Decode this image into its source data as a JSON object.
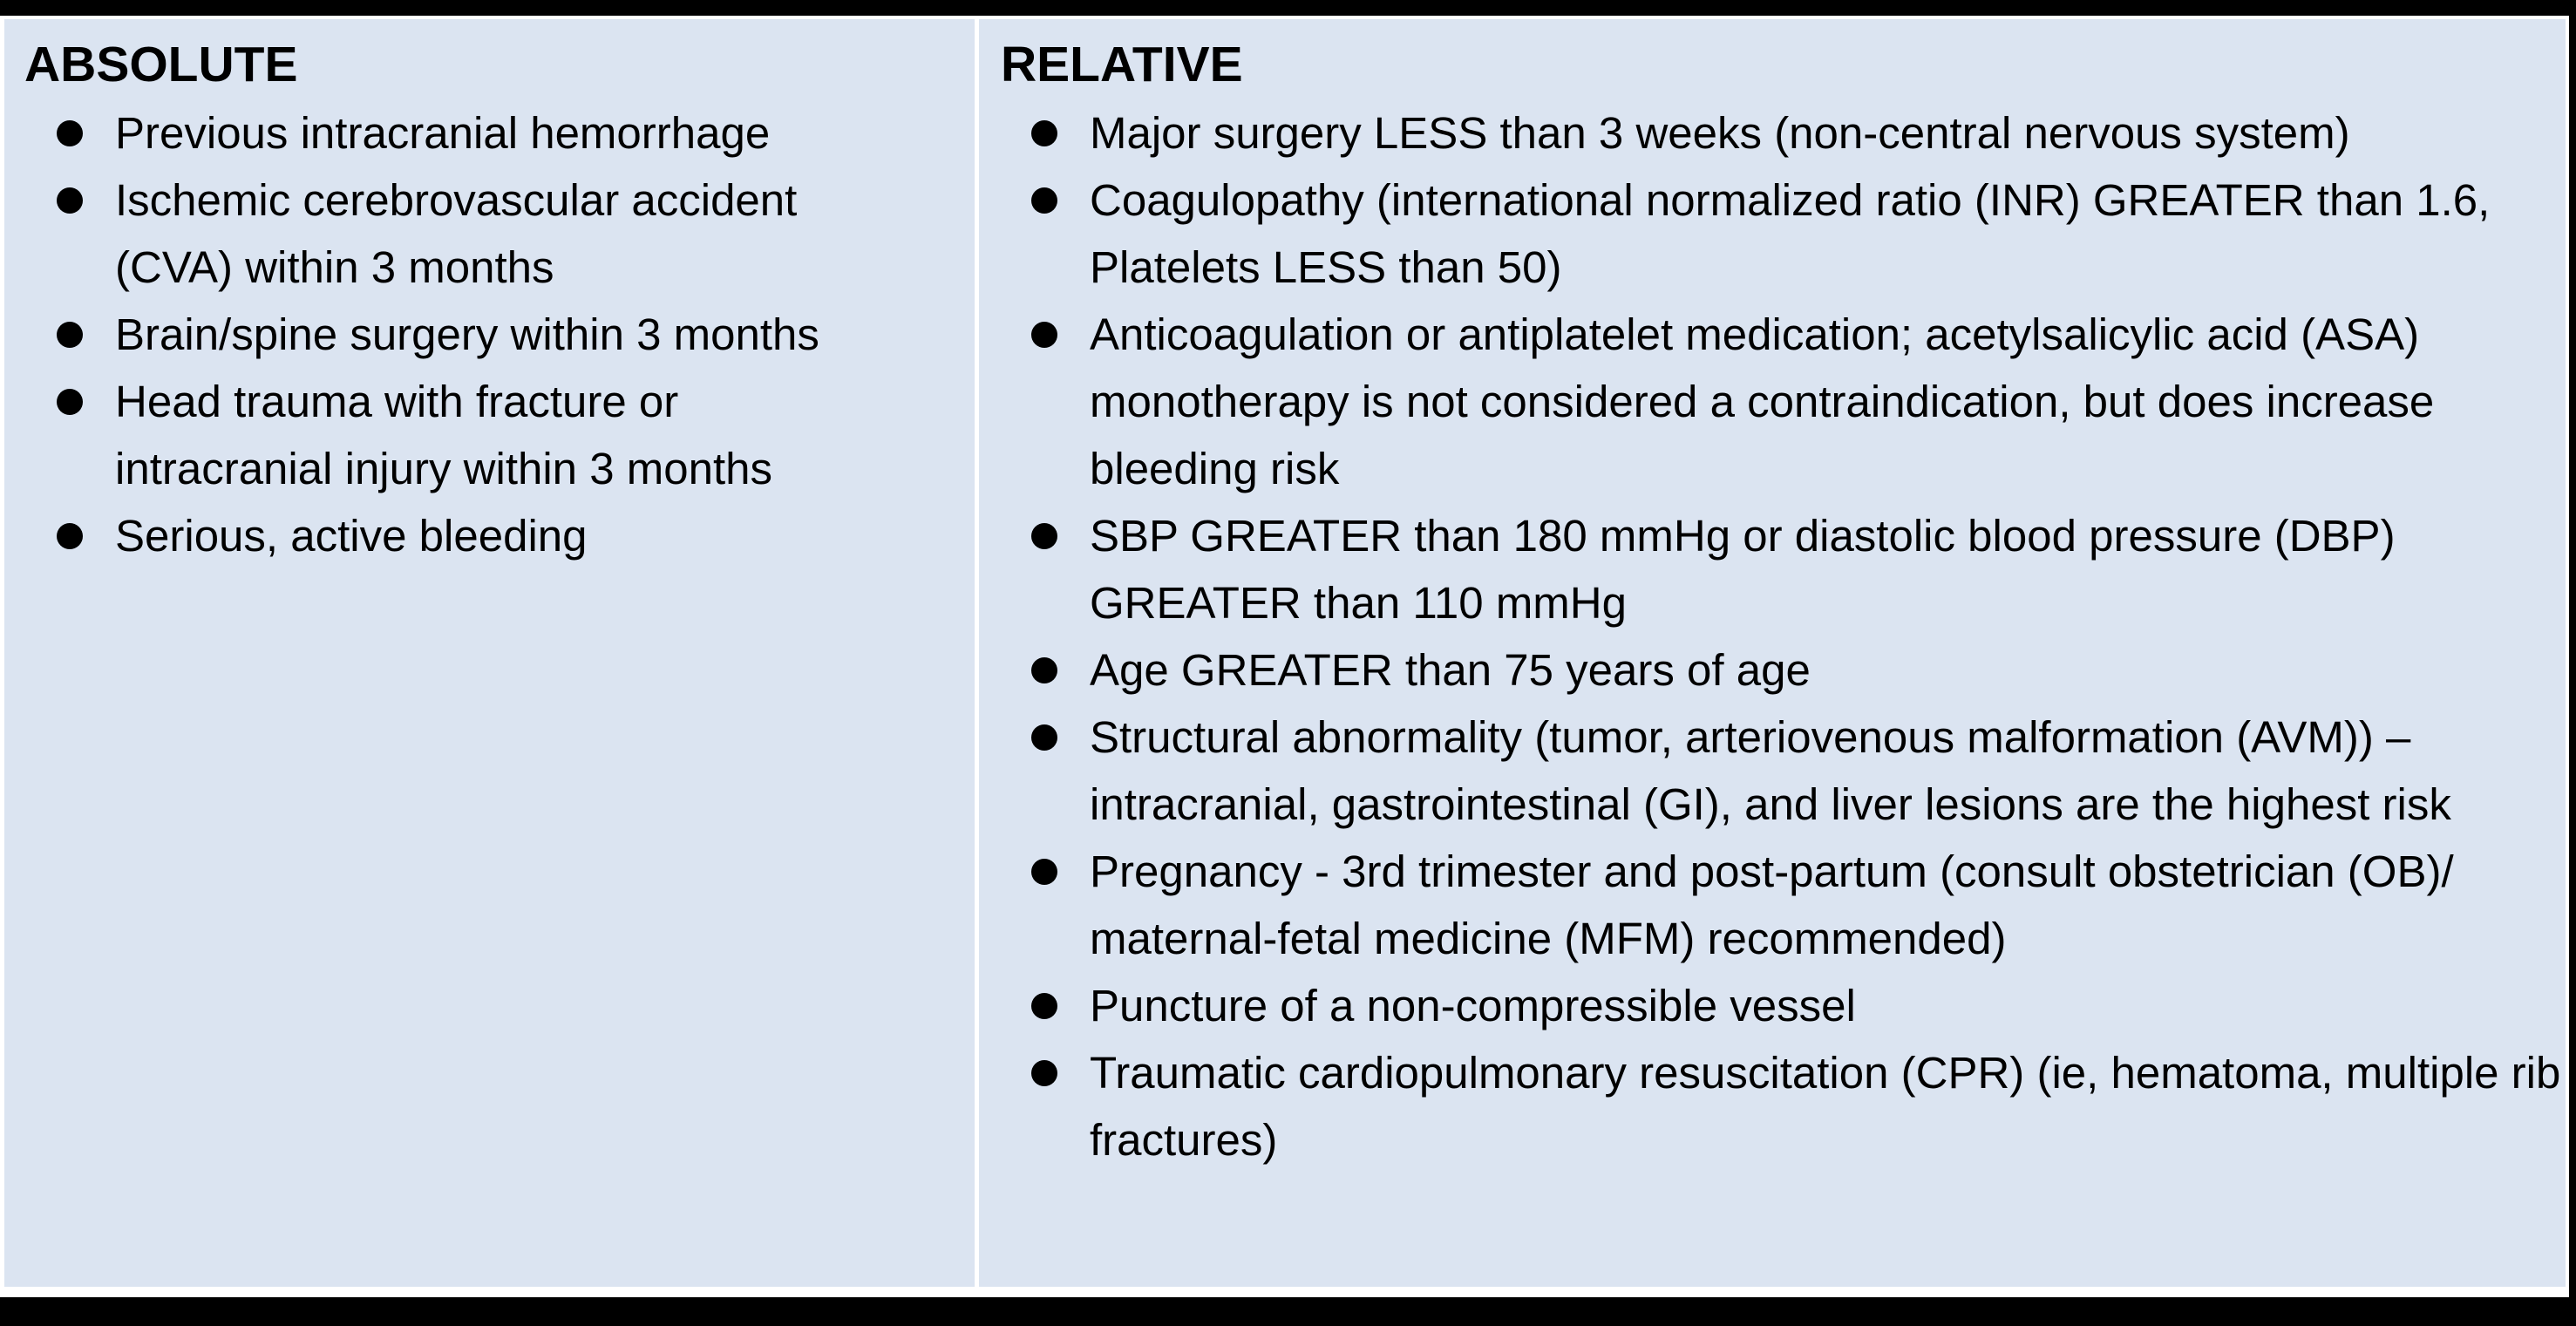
{
  "table": {
    "columns": [
      {
        "header": "ABSOLUTE",
        "items": [
          "Previous intracranial hemorrhage",
          "Ischemic cerebrovascular accident (CVA) within 3 months",
          "Brain/spine surgery within 3 months",
          "Head trauma with fracture or intracranial injury within 3 months",
          "Serious, active bleeding"
        ]
      },
      {
        "header": "RELATIVE",
        "items": [
          "Major surgery LESS than 3 weeks (non-central nervous system)",
          "Coagulopathy (international normalized ratio (INR) GREATER than 1.6, Platelets LESS than 50)",
          "Anticoagulation or antiplatelet medication; acetylsalicylic acid (ASA) monotherapy is not considered a contraindication, but does increase bleeding risk",
          "SBP GREATER than 180 mmHg or diastolic blood pressure (DBP) GREATER than 110 mmHg",
          "Age GREATER than 75 years of age",
          "Structural abnormality (tumor, arteriovenous malformation (AVM)) –intracranial, gastrointestinal (GI), and liver lesions are the highest risk",
          "Pregnancy - 3rd trimester and post-partum (consult obstetrician (OB)/ maternal-fetal medicine (MFM) recommended)",
          "Puncture of a non-compressible vessel",
          "Traumatic cardiopulmonary resuscitation (CPR) (ie, hematoma, multiple rib fractures)"
        ]
      }
    ]
  },
  "colors": {
    "panel_bg": "#dbe4f1",
    "frame": "#000000",
    "divider": "#ffffff",
    "text": "#000000"
  }
}
